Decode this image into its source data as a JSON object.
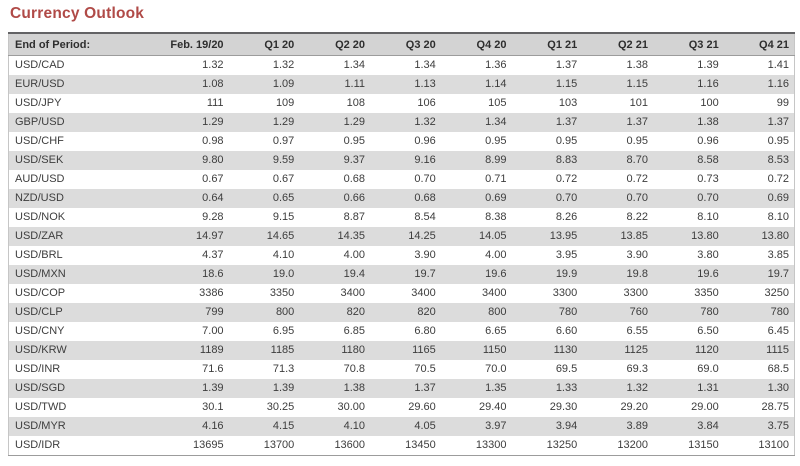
{
  "title": "Currency Outlook",
  "colors": {
    "title_red": "#b04a47",
    "header_bg": "#d3d3d3",
    "stripe_bg": "#dcdcdc",
    "header_text": "#2e2e2e",
    "cell_text": "#3d3d3d",
    "top_border": "#636365",
    "rule_gray": "#9c9c9c",
    "outer_border": "#c6c6c6"
  },
  "chart_data": {
    "type": "table",
    "title": "Currency Outlook",
    "columns": [
      "End of Period:",
      "Feb. 19/20",
      "Q1 20",
      "Q2 20",
      "Q3 20",
      "Q4 20",
      "Q1 21",
      "Q2 21",
      "Q3 21",
      "Q4 21"
    ],
    "rows": [
      [
        "USD/CAD",
        "1.32",
        "1.32",
        "1.34",
        "1.34",
        "1.36",
        "1.37",
        "1.38",
        "1.39",
        "1.41"
      ],
      [
        "EUR/USD",
        "1.08",
        "1.09",
        "1.11",
        "1.13",
        "1.14",
        "1.15",
        "1.15",
        "1.16",
        "1.16"
      ],
      [
        "USD/JPY",
        "111",
        "109",
        "108",
        "106",
        "105",
        "103",
        "101",
        "100",
        "99"
      ],
      [
        "GBP/USD",
        "1.29",
        "1.29",
        "1.29",
        "1.32",
        "1.34",
        "1.37",
        "1.37",
        "1.38",
        "1.37"
      ],
      [
        "USD/CHF",
        "0.98",
        "0.97",
        "0.95",
        "0.96",
        "0.95",
        "0.95",
        "0.95",
        "0.96",
        "0.95"
      ],
      [
        "USD/SEK",
        "9.80",
        "9.59",
        "9.37",
        "9.16",
        "8.99",
        "8.83",
        "8.70",
        "8.58",
        "8.53"
      ],
      [
        "AUD/USD",
        "0.67",
        "0.67",
        "0.68",
        "0.70",
        "0.71",
        "0.72",
        "0.72",
        "0.73",
        "0.72"
      ],
      [
        "NZD/USD",
        "0.64",
        "0.65",
        "0.66",
        "0.68",
        "0.69",
        "0.70",
        "0.70",
        "0.70",
        "0.69"
      ],
      [
        "USD/NOK",
        "9.28",
        "9.15",
        "8.87",
        "8.54",
        "8.38",
        "8.26",
        "8.22",
        "8.10",
        "8.10"
      ],
      [
        "USD/ZAR",
        "14.97",
        "14.65",
        "14.35",
        "14.25",
        "14.05",
        "13.95",
        "13.85",
        "13.80",
        "13.80"
      ],
      [
        "USD/BRL",
        "4.37",
        "4.10",
        "4.00",
        "3.90",
        "4.00",
        "3.95",
        "3.90",
        "3.80",
        "3.85"
      ],
      [
        "USD/MXN",
        "18.6",
        "19.0",
        "19.4",
        "19.7",
        "19.6",
        "19.9",
        "19.8",
        "19.6",
        "19.7"
      ],
      [
        "USD/COP",
        "3386",
        "3350",
        "3400",
        "3400",
        "3400",
        "3300",
        "3300",
        "3350",
        "3250"
      ],
      [
        "USD/CLP",
        "799",
        "800",
        "820",
        "820",
        "800",
        "780",
        "760",
        "780",
        "780"
      ],
      [
        "USD/CNY",
        "7.00",
        "6.95",
        "6.85",
        "6.80",
        "6.65",
        "6.60",
        "6.55",
        "6.50",
        "6.45"
      ],
      [
        "USD/KRW",
        "1189",
        "1185",
        "1180",
        "1165",
        "1150",
        "1130",
        "1125",
        "1120",
        "1115"
      ],
      [
        "USD/INR",
        "71.6",
        "71.3",
        "70.8",
        "70.5",
        "70.0",
        "69.5",
        "69.3",
        "69.0",
        "68.5"
      ],
      [
        "USD/SGD",
        "1.39",
        "1.39",
        "1.38",
        "1.37",
        "1.35",
        "1.33",
        "1.32",
        "1.31",
        "1.30"
      ],
      [
        "USD/TWD",
        "30.1",
        "30.25",
        "30.00",
        "29.60",
        "29.40",
        "29.30",
        "29.20",
        "29.00",
        "28.75"
      ],
      [
        "USD/MYR",
        "4.16",
        "4.15",
        "4.10",
        "4.05",
        "3.97",
        "3.94",
        "3.89",
        "3.84",
        "3.75"
      ],
      [
        "USD/IDR",
        "13695",
        "13700",
        "13600",
        "13450",
        "13300",
        "13250",
        "13200",
        "13150",
        "13100"
      ]
    ]
  }
}
